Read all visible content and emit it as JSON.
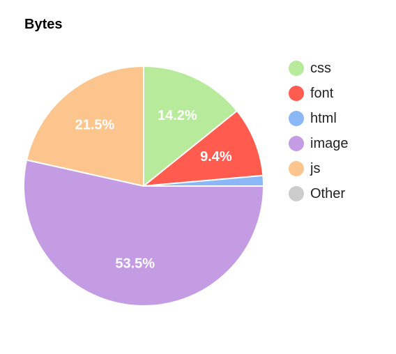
{
  "chart_data": {
    "type": "pie",
    "title": "Bytes",
    "slices": [
      {
        "label": "css",
        "value": 14.2,
        "color": "#b7ea9a",
        "display": "14.2%"
      },
      {
        "label": "font",
        "value": 9.4,
        "color": "#ff5b4f",
        "display": "9.4%"
      },
      {
        "label": "html",
        "value": 1.4,
        "color": "#8cb7f7",
        "display": ""
      },
      {
        "label": "image",
        "value": 53.5,
        "color": "#c49ce4",
        "display": "53.5%"
      },
      {
        "label": "js",
        "value": 21.5,
        "color": "#fdc58e",
        "display": "21.5%"
      },
      {
        "label": "Other",
        "value": 0,
        "color": "#cccccc",
        "display": ""
      }
    ],
    "legend_position": "right",
    "start_angle": "top",
    "direction": "clockwise"
  }
}
